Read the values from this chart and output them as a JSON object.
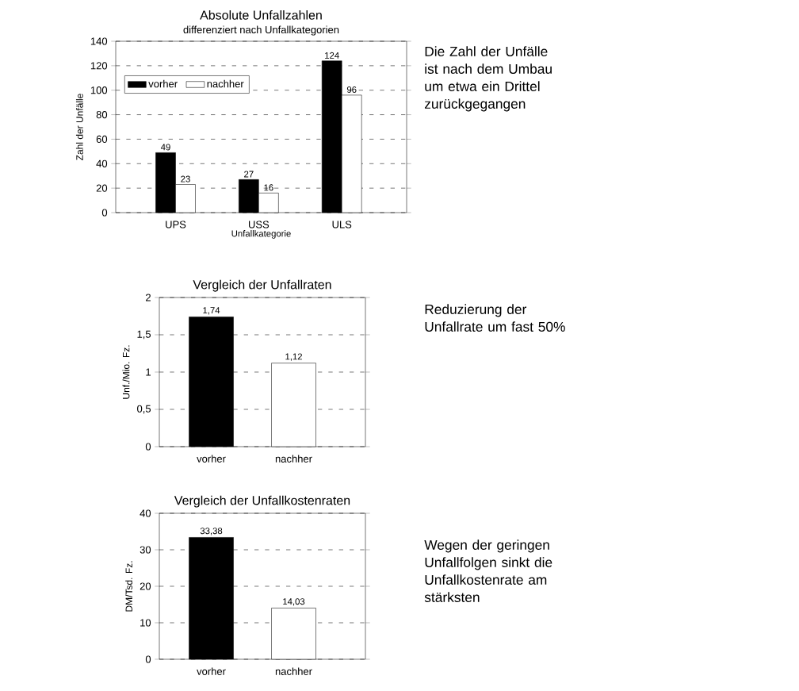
{
  "chart_data": [
    {
      "type": "bar",
      "title": "Absolute Unfallzahlen",
      "subtitle": "differenziert nach Unfallkategorien",
      "xlabel": "Unfallkategorie",
      "ylabel": "Zahl der Unfälle",
      "categories": [
        "UPS",
        "USS",
        "ULS"
      ],
      "series": [
        {
          "name": "vorher",
          "color": "#000000",
          "values": [
            49,
            27,
            124
          ]
        },
        {
          "name": "nachher",
          "color": "#ffffff",
          "values": [
            23,
            16,
            96
          ]
        }
      ],
      "ylim": [
        0,
        140
      ],
      "yticks": [
        0,
        20,
        40,
        60,
        80,
        100,
        120,
        140
      ],
      "grid": "y",
      "legend": "top left",
      "data_labels": true,
      "annotations": [
        "Die Zahl der Unfälle ist nach dem Umbau um etwa ein Drittel zurückgegangen"
      ]
    },
    {
      "type": "bar",
      "title": "Vergleich der Unfallraten",
      "ylabel": "Unf./Mio. Fz.",
      "categories": [
        "vorher",
        "nachher"
      ],
      "values": [
        1.74,
        1.12
      ],
      "colors": [
        "#000000",
        "#ffffff"
      ],
      "value_labels": [
        "1,74",
        "1,12"
      ],
      "ylim": [
        0,
        2
      ],
      "yticks": [
        0,
        {
          "value": 0.5,
          "label": "0,5"
        },
        1,
        {
          "value": 1.5,
          "label": "1,5"
        },
        2
      ],
      "grid": "y",
      "annotations": [
        "Reduzierung der Unfallrate um fast 50%"
      ]
    },
    {
      "type": "bar",
      "title": "Vergleich der Unfallkostenraten",
      "ylabel": "DM/Tsd. Fz.",
      "categories": [
        "vorher",
        "nachher"
      ],
      "values": [
        33.38,
        14.03
      ],
      "colors": [
        "#000000",
        "#ffffff"
      ],
      "value_labels": [
        "33,38",
        "14,03"
      ],
      "ylim": [
        0,
        40
      ],
      "yticks": [
        0,
        10,
        20,
        30,
        40
      ],
      "grid": "y",
      "annotations": [
        "Wegen der geringen Unfallfolgen sinkt die Unfallkostenrate am stärksten"
      ]
    }
  ]
}
